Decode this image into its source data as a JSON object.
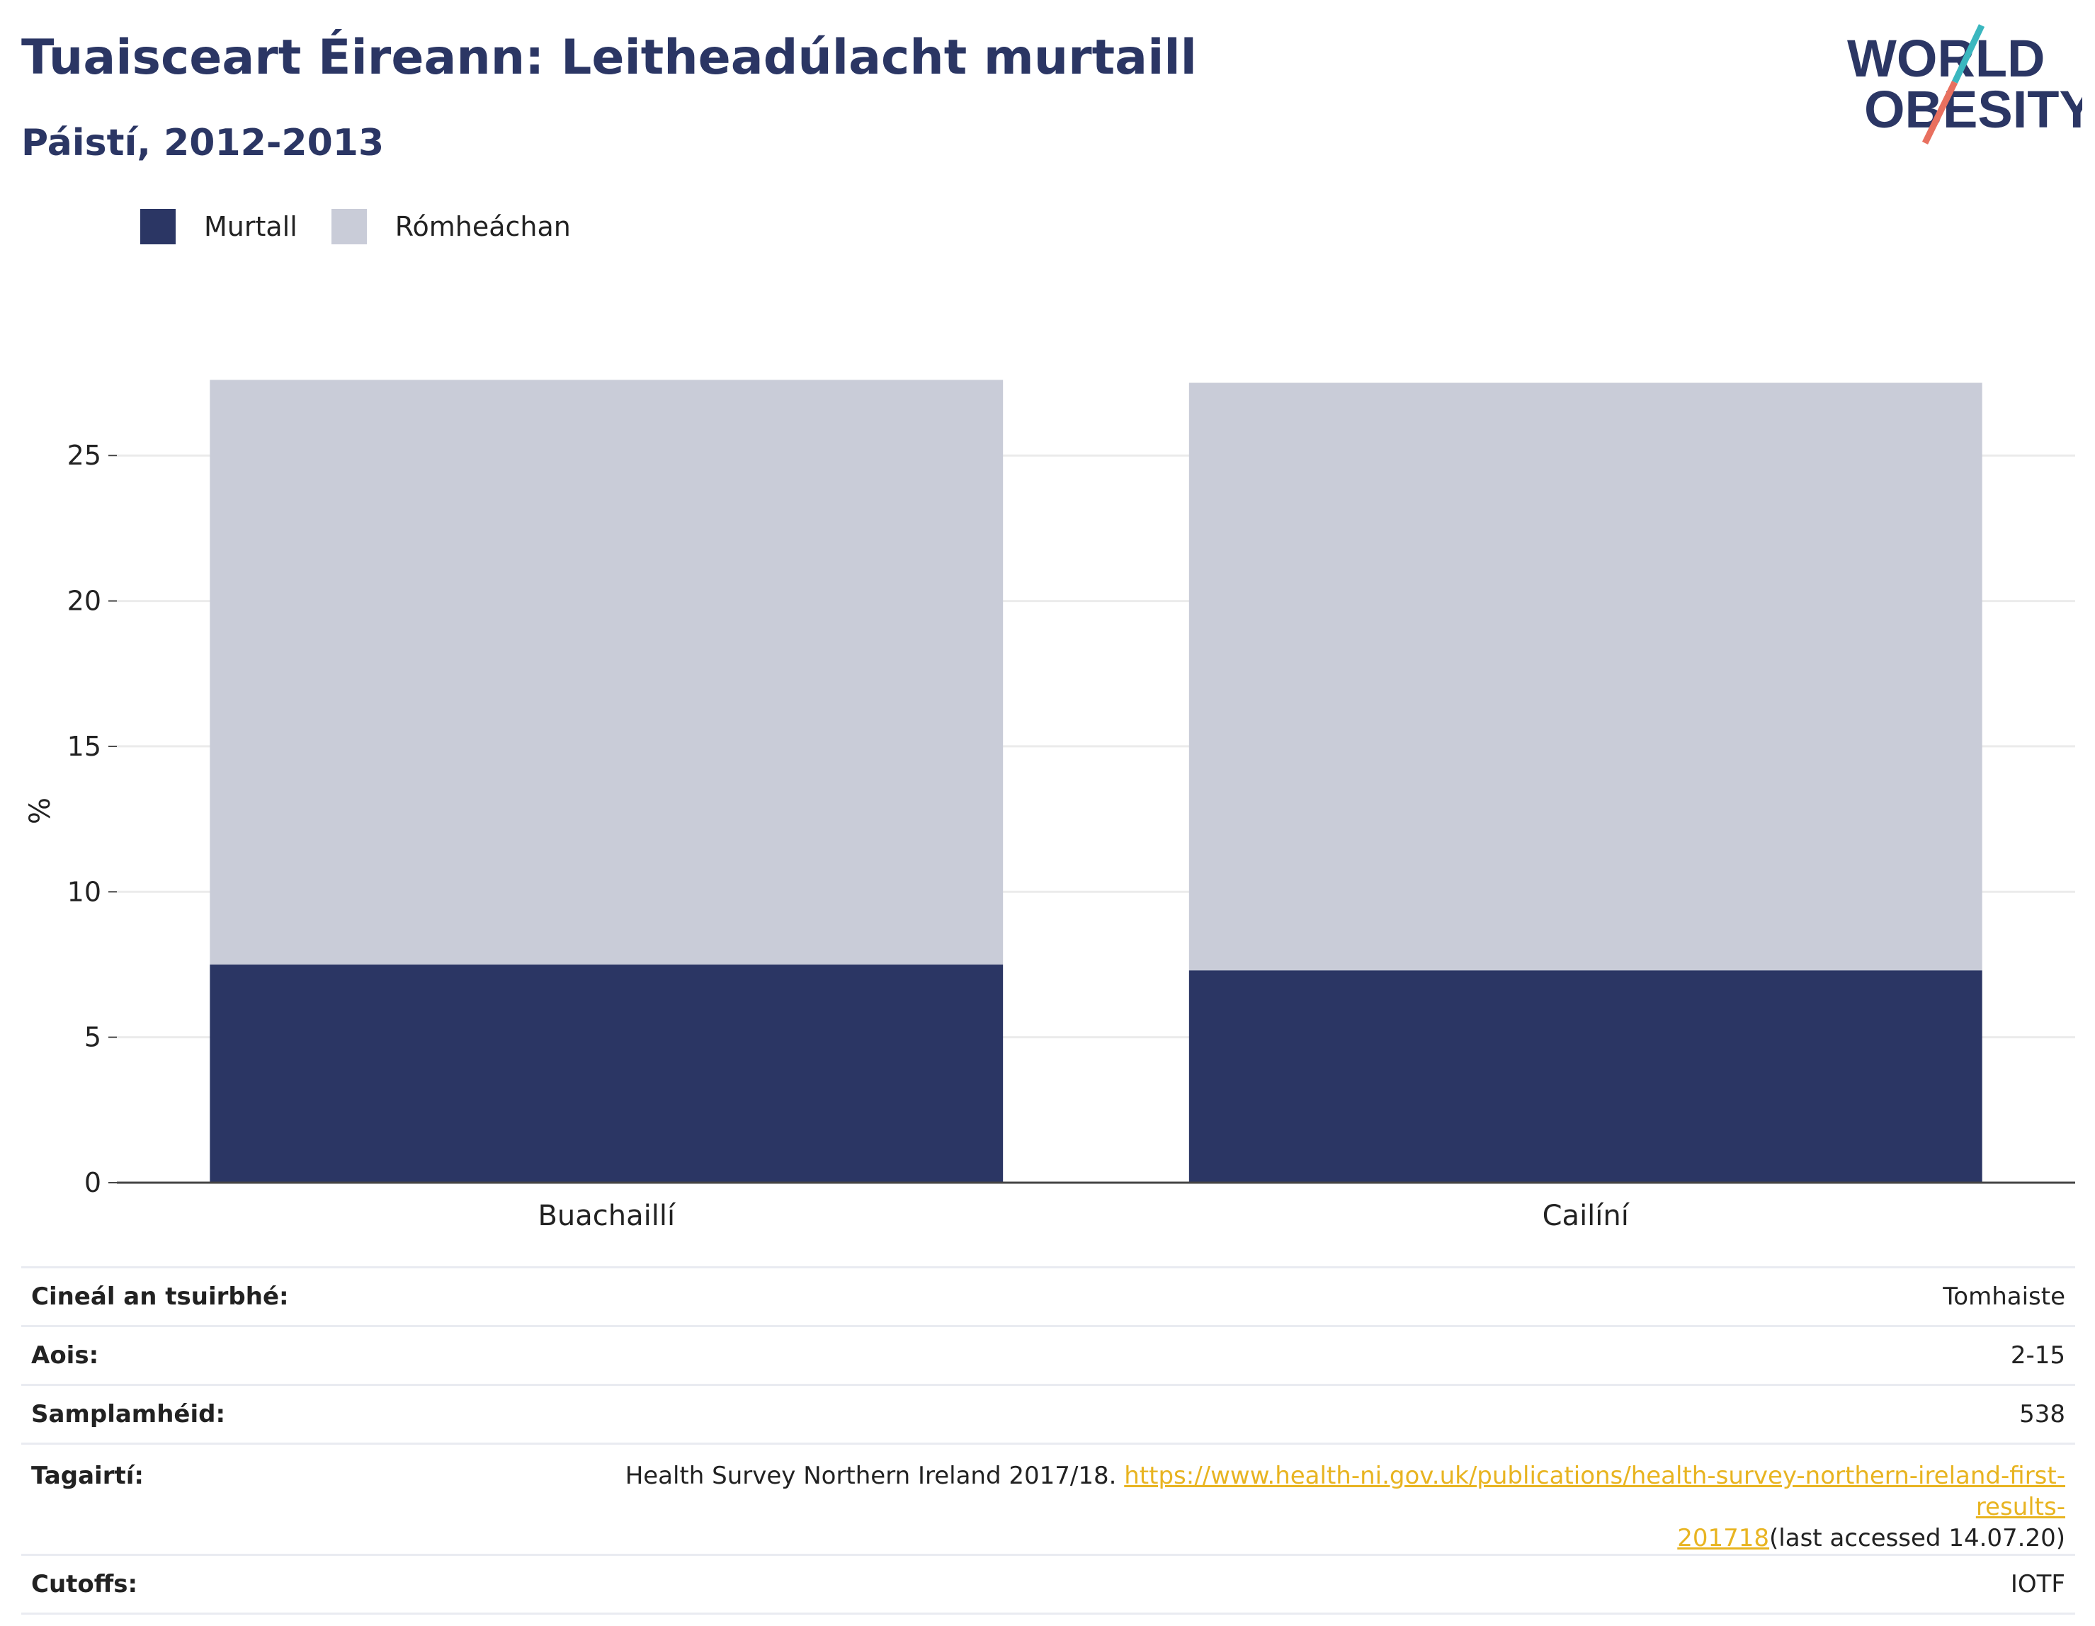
{
  "header": {
    "title": "Tuaisceart Éireann: Leitheadúlacht murtaill",
    "subtitle": "Páistí, 2012-2013"
  },
  "logo": {
    "line1": "WORLD",
    "line2": "OBESITY",
    "slash_colors": [
      "#3ab7bf",
      "#e8705f"
    ]
  },
  "colors": {
    "obese": "#2b3664",
    "overweight": "#c9ccd8",
    "gridline": "#ebebeb",
    "axis": "#444444",
    "link": "#e8b421"
  },
  "chart_data": {
    "type": "bar",
    "stacked": true,
    "categories": [
      "Buachaillí",
      "Cailíní"
    ],
    "series": [
      {
        "name": "Murtall",
        "color": "#2b3664",
        "values": [
          7.5,
          7.3
        ]
      },
      {
        "name": "Rómheáchan",
        "color": "#c9ccd8",
        "values": [
          20.1,
          20.2
        ]
      }
    ],
    "ylabel": "%",
    "xlabel": "",
    "ylim": [
      0,
      28
    ],
    "yticks": [
      0,
      5,
      10,
      15,
      20,
      25
    ],
    "grid": true,
    "legend_position": "top-left"
  },
  "info": {
    "survey_type_label": "Cineál an tsuirbhé:",
    "survey_type_value": "Tomhaiste",
    "age_label": "Aois:",
    "age_value": "2-15",
    "sample_label": "Samplamhéid:",
    "sample_value": "538",
    "references_label": "Tagairtí:",
    "references_text": "Health Survey Northern Ireland 2017/18. ",
    "references_url_line1": "https://www.health-ni.gov.uk/publications/health-survey-northern-ireland-first-results-",
    "references_url_line2": "201718",
    "references_suffix": "(last accessed 14.07.20)",
    "cutoffs_label": "Cutoffs:",
    "cutoffs_value": "IOTF"
  }
}
